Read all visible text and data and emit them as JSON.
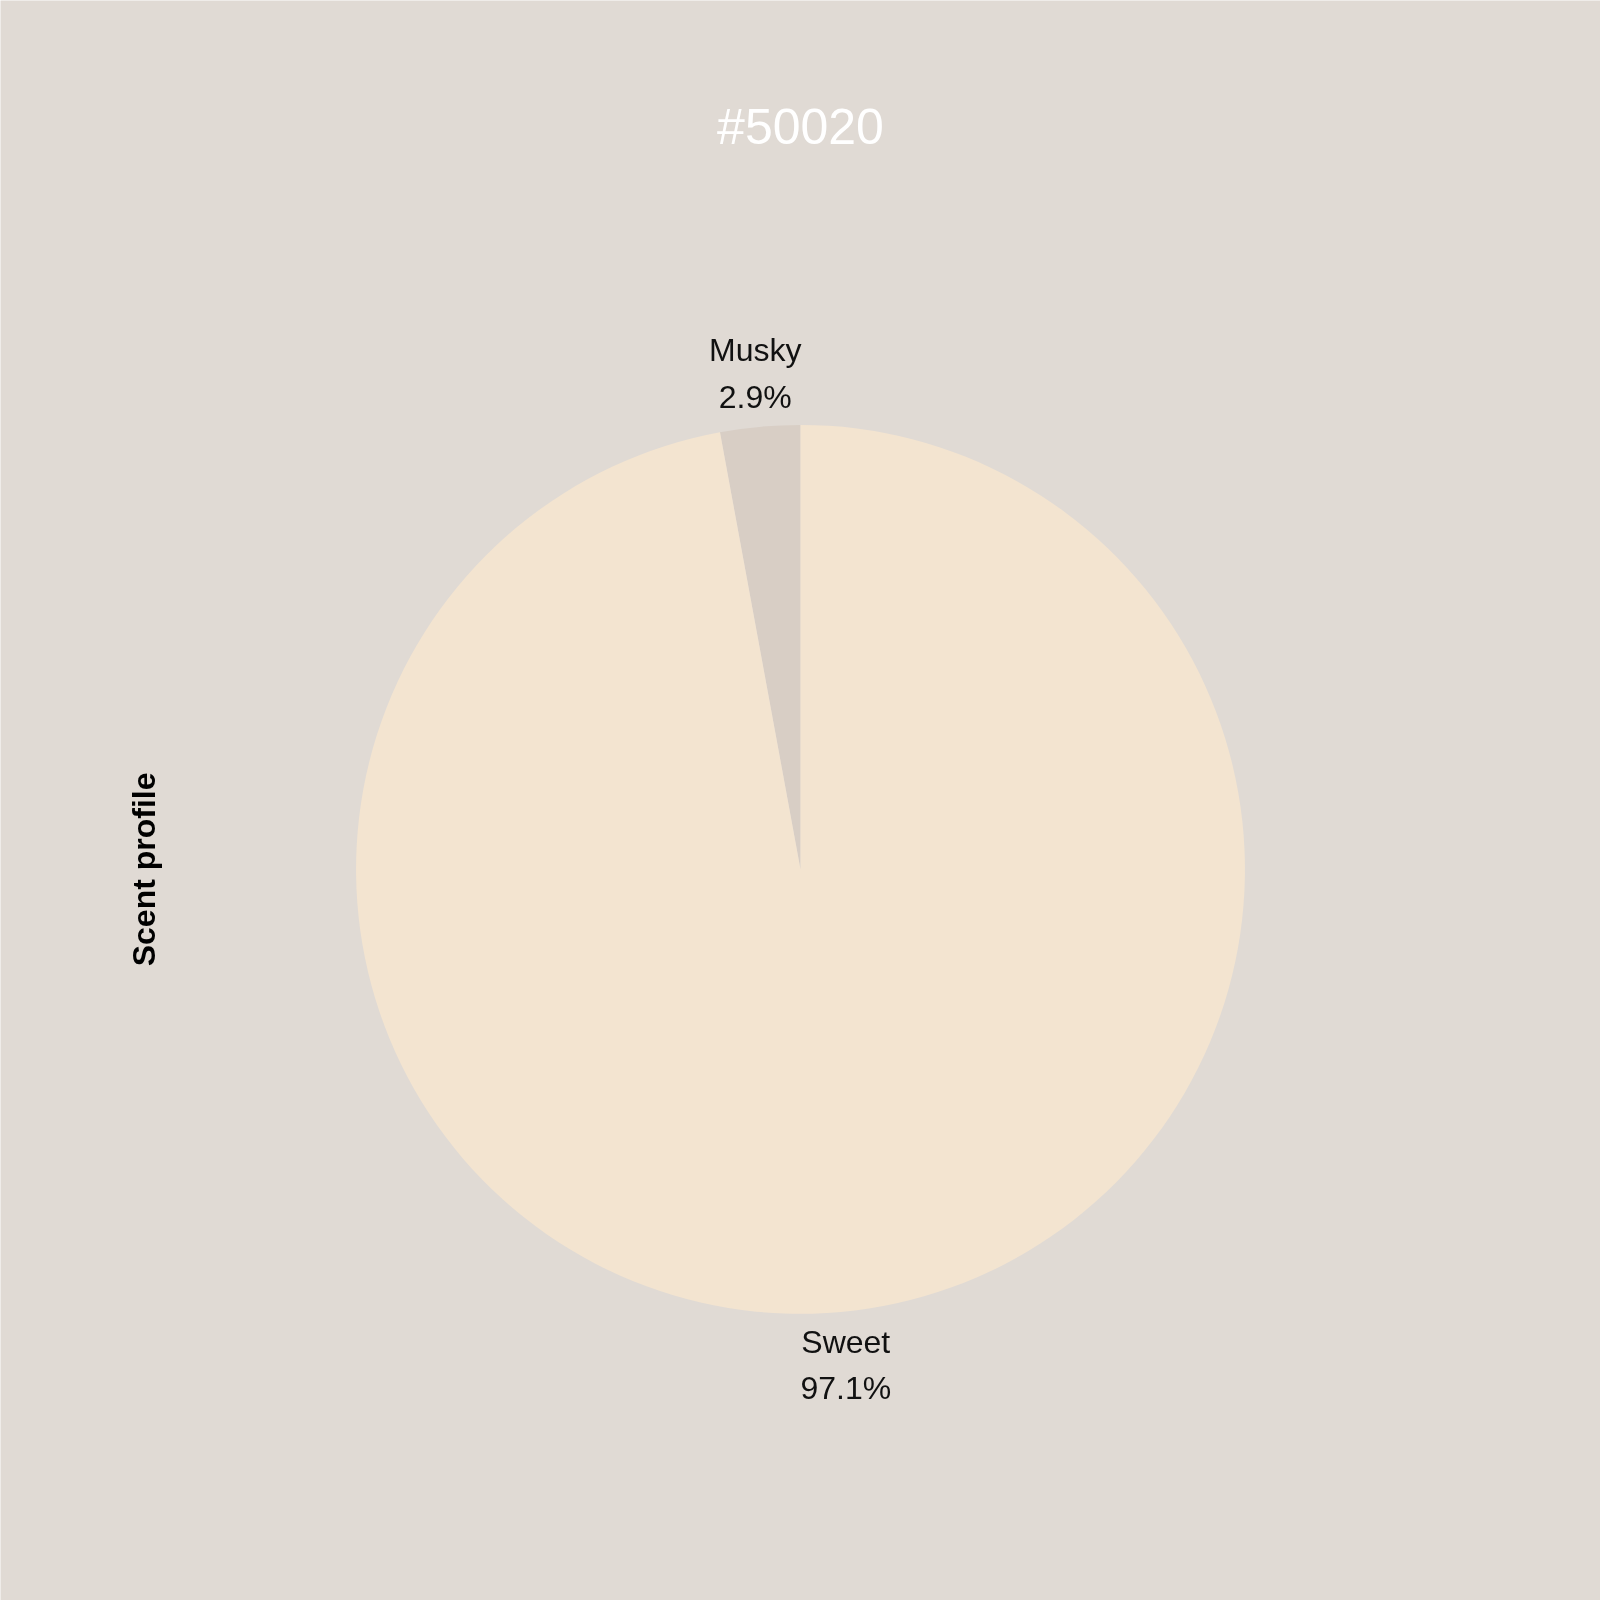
{
  "chart_data": {
    "type": "pie",
    "subtitle": "#50020",
    "ylabel": "Scent profile",
    "categories": [
      "Musky",
      "Sweet"
    ],
    "values": [
      2.9,
      97.1
    ],
    "colors": [
      "#d8cec5",
      "#f3e4d0"
    ],
    "value_labels": [
      "2.9%",
      "97.1%"
    ]
  }
}
